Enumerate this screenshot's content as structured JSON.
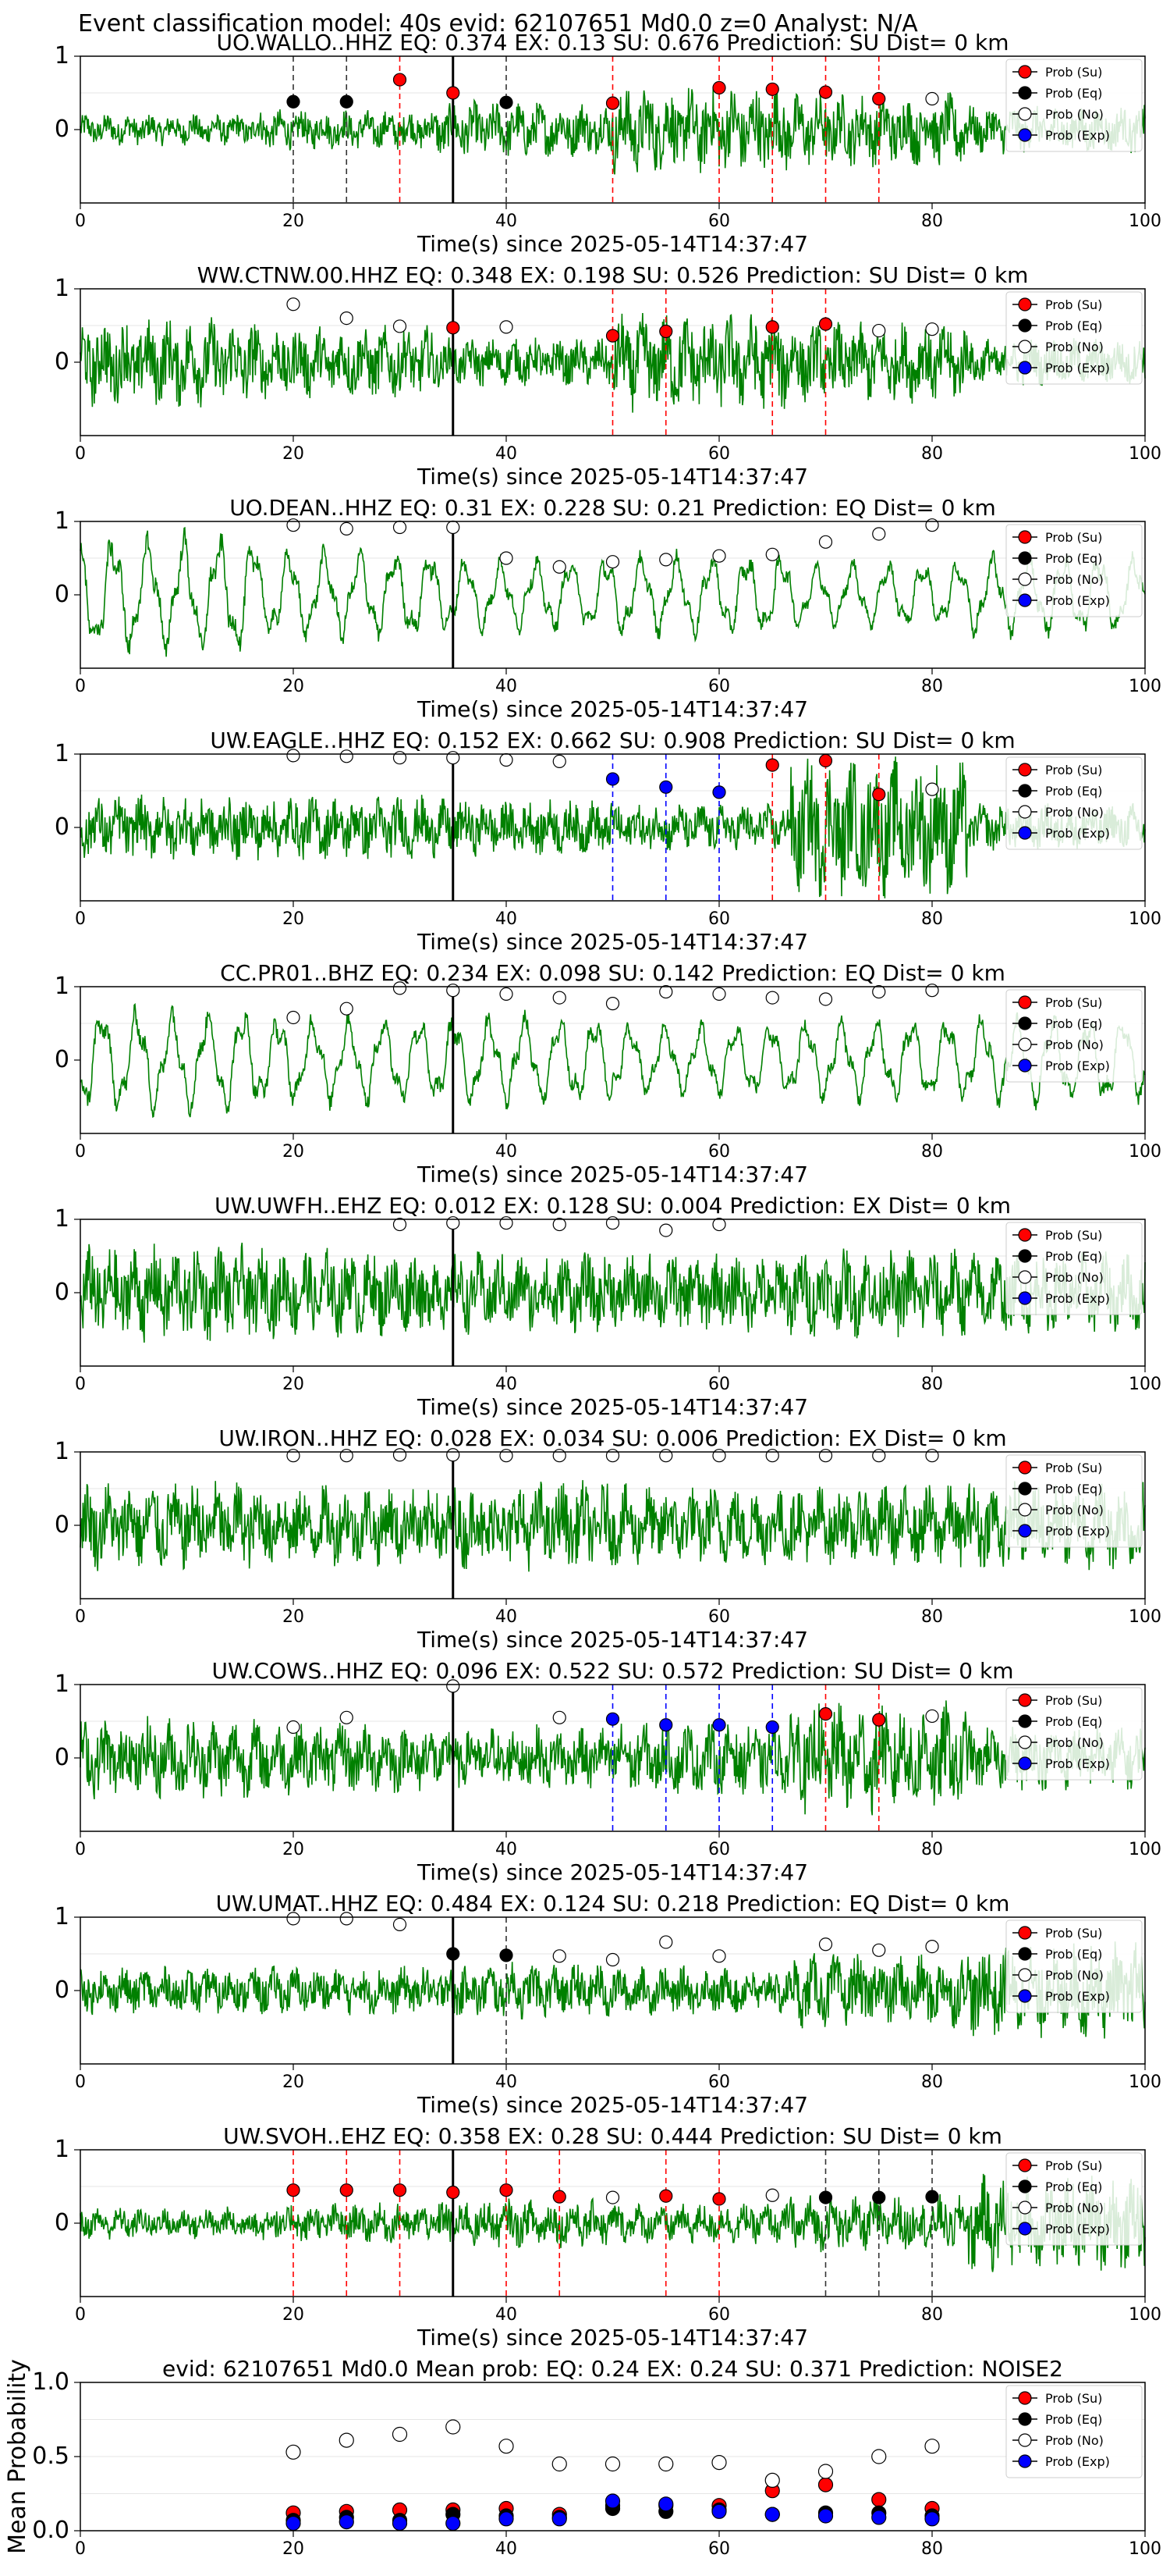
{
  "suptitle": "Event classification model: 40s evid: 62107651 Md0.0 z=0 Analyst: N/A",
  "xlabel": "Time(s) since 2025-05-14T14:37:47",
  "legend": [
    "Prob (Su)",
    "Prob (Eq)",
    "Prob (No)",
    "Prob (Exp)"
  ],
  "colors": {
    "su": "#ff0000",
    "eq": "#000000",
    "no": "#ffffff",
    "exp": "#0000ff",
    "wave": "#008000"
  },
  "chart_data": [
    {
      "type": "line",
      "title": "UO.WALLO..HHZ   EQ: 0.374  EX: 0.13  SU: 0.676   Prediction: SU    Dist= 0 km",
      "xlim": [
        0,
        100
      ],
      "ylim": [
        -1,
        1
      ],
      "xticks": [
        0,
        20,
        40,
        60,
        80,
        100
      ],
      "yticks": [
        0,
        1
      ],
      "style": "noisy",
      "amp": [
        0.2,
        0.25,
        0.35,
        0.55,
        0.45,
        0.3
      ],
      "points": [
        {
          "x": 20,
          "cls": "eq",
          "p": 0.38
        },
        {
          "x": 25,
          "cls": "eq",
          "p": 0.38
        },
        {
          "x": 30,
          "cls": "su",
          "p": 0.68
        },
        {
          "x": 35,
          "cls": "su",
          "p": 0.5
        },
        {
          "x": 40,
          "cls": "eq",
          "p": 0.37
        },
        {
          "x": 50,
          "cls": "su",
          "p": 0.36
        },
        {
          "x": 60,
          "cls": "su",
          "p": 0.57
        },
        {
          "x": 65,
          "cls": "su",
          "p": 0.55
        },
        {
          "x": 70,
          "cls": "su",
          "p": 0.51
        },
        {
          "x": 75,
          "cls": "su",
          "p": 0.42
        },
        {
          "x": 80,
          "cls": "no",
          "p": 0.42
        }
      ],
      "vlines": [
        {
          "x": 20,
          "cls": "eq"
        },
        {
          "x": 25,
          "cls": "eq"
        },
        {
          "x": 30,
          "cls": "su"
        },
        {
          "x": 40,
          "cls": "eq"
        },
        {
          "x": 50,
          "cls": "su"
        },
        {
          "x": 60,
          "cls": "su"
        },
        {
          "x": 65,
          "cls": "su"
        },
        {
          "x": 70,
          "cls": "su"
        },
        {
          "x": 75,
          "cls": "su"
        }
      ]
    },
    {
      "type": "line",
      "title": "WW.CTNW.00.HHZ   EQ: 0.348  EX: 0.198  SU: 0.526   Prediction: SU    Dist= 0 km",
      "xlim": [
        0,
        100
      ],
      "ylim": [
        -1,
        1
      ],
      "xticks": [
        0,
        20,
        40,
        60,
        80,
        100
      ],
      "yticks": [
        0,
        1
      ],
      "style": "noisy",
      "amp": [
        0.55,
        0.45,
        0.3,
        0.6,
        0.5,
        0.3
      ],
      "points": [
        {
          "x": 20,
          "cls": "no",
          "p": 0.79
        },
        {
          "x": 25,
          "cls": "no",
          "p": 0.6
        },
        {
          "x": 30,
          "cls": "no",
          "p": 0.49
        },
        {
          "x": 35,
          "cls": "su",
          "p": 0.47
        },
        {
          "x": 40,
          "cls": "no",
          "p": 0.48
        },
        {
          "x": 50,
          "cls": "su",
          "p": 0.36
        },
        {
          "x": 55,
          "cls": "su",
          "p": 0.42
        },
        {
          "x": 65,
          "cls": "su",
          "p": 0.48
        },
        {
          "x": 70,
          "cls": "su",
          "p": 0.52
        },
        {
          "x": 75,
          "cls": "no",
          "p": 0.43
        },
        {
          "x": 80,
          "cls": "no",
          "p": 0.45
        }
      ],
      "vlines": [
        {
          "x": 50,
          "cls": "su"
        },
        {
          "x": 55,
          "cls": "su"
        },
        {
          "x": 65,
          "cls": "su"
        },
        {
          "x": 70,
          "cls": "su"
        }
      ]
    },
    {
      "type": "line",
      "title": "UO.DEAN..HHZ   EQ: 0.31  EX: 0.228  SU: 0.21   Prediction: EQ    Dist= 0 km",
      "xlim": [
        0,
        100
      ],
      "ylim": [
        -1,
        1
      ],
      "xticks": [
        0,
        20,
        40,
        60,
        80,
        100
      ],
      "yticks": [
        0,
        1
      ],
      "style": "wavy",
      "amp": [
        0.8,
        0.6,
        0.5,
        0.55,
        0.45,
        0.55
      ],
      "points": [
        {
          "x": 20,
          "cls": "no",
          "p": 0.95
        },
        {
          "x": 25,
          "cls": "no",
          "p": 0.9
        },
        {
          "x": 30,
          "cls": "no",
          "p": 0.92
        },
        {
          "x": 35,
          "cls": "no",
          "p": 0.92
        },
        {
          "x": 40,
          "cls": "no",
          "p": 0.5
        },
        {
          "x": 45,
          "cls": "no",
          "p": 0.38
        },
        {
          "x": 50,
          "cls": "no",
          "p": 0.45
        },
        {
          "x": 55,
          "cls": "no",
          "p": 0.48
        },
        {
          "x": 60,
          "cls": "no",
          "p": 0.53
        },
        {
          "x": 65,
          "cls": "no",
          "p": 0.55
        },
        {
          "x": 70,
          "cls": "no",
          "p": 0.72
        },
        {
          "x": 75,
          "cls": "no",
          "p": 0.83
        },
        {
          "x": 80,
          "cls": "no",
          "p": 0.95
        }
      ],
      "vlines": []
    },
    {
      "type": "line",
      "title": "UW.EAGLE..HHZ   EQ: 0.152  EX: 0.662  SU: 0.908   Prediction: SU    Dist= 0 km",
      "xlim": [
        0,
        100
      ],
      "ylim": [
        -1,
        1
      ],
      "xticks": [
        0,
        20,
        40,
        60,
        80,
        100
      ],
      "yticks": [
        0,
        1
      ],
      "style": "noisy",
      "amp": [
        0.4,
        0.4,
        0.35,
        0.3,
        0.85,
        0.3
      ],
      "points": [
        {
          "x": 20,
          "cls": "no",
          "p": 0.98
        },
        {
          "x": 25,
          "cls": "no",
          "p": 0.97
        },
        {
          "x": 30,
          "cls": "no",
          "p": 0.95
        },
        {
          "x": 35,
          "cls": "no",
          "p": 0.95
        },
        {
          "x": 40,
          "cls": "no",
          "p": 0.92
        },
        {
          "x": 45,
          "cls": "no",
          "p": 0.9
        },
        {
          "x": 50,
          "cls": "exp",
          "p": 0.66
        },
        {
          "x": 55,
          "cls": "exp",
          "p": 0.55
        },
        {
          "x": 60,
          "cls": "exp",
          "p": 0.48
        },
        {
          "x": 65,
          "cls": "su",
          "p": 0.85
        },
        {
          "x": 70,
          "cls": "su",
          "p": 0.91
        },
        {
          "x": 75,
          "cls": "su",
          "p": 0.45
        },
        {
          "x": 80,
          "cls": "no",
          "p": 0.52
        }
      ],
      "vlines": [
        {
          "x": 50,
          "cls": "exp"
        },
        {
          "x": 55,
          "cls": "exp"
        },
        {
          "x": 60,
          "cls": "exp"
        },
        {
          "x": 65,
          "cls": "su"
        },
        {
          "x": 70,
          "cls": "su"
        },
        {
          "x": 75,
          "cls": "su"
        }
      ]
    },
    {
      "type": "line",
      "title": "CC.PR01..BHZ   EQ: 0.234  EX: 0.098  SU: 0.142   Prediction: EQ    Dist= 0 km",
      "xlim": [
        0,
        100
      ],
      "ylim": [
        -1,
        1
      ],
      "xticks": [
        0,
        20,
        40,
        60,
        80,
        100
      ],
      "yticks": [
        0,
        1
      ],
      "style": "wavy",
      "amp": [
        0.7,
        0.6,
        0.6,
        0.5,
        0.55,
        0.6
      ],
      "points": [
        {
          "x": 20,
          "cls": "no",
          "p": 0.58
        },
        {
          "x": 25,
          "cls": "no",
          "p": 0.7
        },
        {
          "x": 30,
          "cls": "no",
          "p": 0.98
        },
        {
          "x": 35,
          "cls": "no",
          "p": 0.95
        },
        {
          "x": 40,
          "cls": "no",
          "p": 0.9
        },
        {
          "x": 45,
          "cls": "no",
          "p": 0.85
        },
        {
          "x": 50,
          "cls": "no",
          "p": 0.77
        },
        {
          "x": 55,
          "cls": "no",
          "p": 0.93
        },
        {
          "x": 60,
          "cls": "no",
          "p": 0.9
        },
        {
          "x": 65,
          "cls": "no",
          "p": 0.85
        },
        {
          "x": 70,
          "cls": "no",
          "p": 0.83
        },
        {
          "x": 75,
          "cls": "no",
          "p": 0.93
        },
        {
          "x": 80,
          "cls": "no",
          "p": 0.95
        }
      ],
      "vlines": []
    },
    {
      "type": "line",
      "title": "UW.UWFH..EHZ   EQ: 0.012  EX: 0.128  SU: 0.004   Prediction: EX    Dist= 0 km",
      "xlim": [
        0,
        100
      ],
      "ylim": [
        -1,
        1
      ],
      "xticks": [
        0,
        20,
        40,
        60,
        80,
        100
      ],
      "yticks": [
        0,
        1
      ],
      "style": "noisy",
      "amp": [
        0.6,
        0.55,
        0.5,
        0.5,
        0.55,
        0.5
      ],
      "points": [
        {
          "x": 30,
          "cls": "no",
          "p": 0.93
        },
        {
          "x": 35,
          "cls": "no",
          "p": 0.95
        },
        {
          "x": 40,
          "cls": "no",
          "p": 0.95
        },
        {
          "x": 45,
          "cls": "no",
          "p": 0.93
        },
        {
          "x": 50,
          "cls": "no",
          "p": 0.95
        },
        {
          "x": 55,
          "cls": "no",
          "p": 0.85
        },
        {
          "x": 60,
          "cls": "no",
          "p": 0.93
        }
      ],
      "vlines": []
    },
    {
      "type": "line",
      "title": "UW.IRON..HHZ   EQ: 0.028  EX: 0.034  SU: 0.006   Prediction: EX    Dist= 0 km",
      "xlim": [
        0,
        100
      ],
      "ylim": [
        -1,
        1
      ],
      "xticks": [
        0,
        20,
        40,
        60,
        80,
        100
      ],
      "yticks": [
        0,
        1
      ],
      "style": "noisy",
      "amp": [
        0.55,
        0.5,
        0.55,
        0.5,
        0.5,
        0.55
      ],
      "points": [
        {
          "x": 20,
          "cls": "no",
          "p": 0.95
        },
        {
          "x": 25,
          "cls": "no",
          "p": 0.95
        },
        {
          "x": 30,
          "cls": "no",
          "p": 0.96
        },
        {
          "x": 35,
          "cls": "no",
          "p": 0.96
        },
        {
          "x": 40,
          "cls": "no",
          "p": 0.95
        },
        {
          "x": 45,
          "cls": "no",
          "p": 0.95
        },
        {
          "x": 50,
          "cls": "no",
          "p": 0.95
        },
        {
          "x": 55,
          "cls": "no",
          "p": 0.95
        },
        {
          "x": 60,
          "cls": "no",
          "p": 0.95
        },
        {
          "x": 65,
          "cls": "no",
          "p": 0.95
        },
        {
          "x": 70,
          "cls": "no",
          "p": 0.95
        },
        {
          "x": 75,
          "cls": "no",
          "p": 0.95
        },
        {
          "x": 80,
          "cls": "no",
          "p": 0.95
        }
      ],
      "vlines": []
    },
    {
      "type": "line",
      "title": "UW.COWS..HHZ   EQ: 0.096  EX: 0.522  SU: 0.572   Prediction: SU    Dist= 0 km",
      "xlim": [
        0,
        100
      ],
      "ylim": [
        -1,
        1
      ],
      "xticks": [
        0,
        20,
        40,
        60,
        80,
        100
      ],
      "yticks": [
        0,
        1
      ],
      "style": "noisy",
      "amp": [
        0.5,
        0.45,
        0.4,
        0.45,
        0.7,
        0.4
      ],
      "points": [
        {
          "x": 20,
          "cls": "no",
          "p": 0.42
        },
        {
          "x": 25,
          "cls": "no",
          "p": 0.55
        },
        {
          "x": 35,
          "cls": "no",
          "p": 0.98
        },
        {
          "x": 45,
          "cls": "no",
          "p": 0.55
        },
        {
          "x": 50,
          "cls": "exp",
          "p": 0.53
        },
        {
          "x": 55,
          "cls": "exp",
          "p": 0.45
        },
        {
          "x": 60,
          "cls": "exp",
          "p": 0.45
        },
        {
          "x": 65,
          "cls": "exp",
          "p": 0.42
        },
        {
          "x": 70,
          "cls": "su",
          "p": 0.6
        },
        {
          "x": 75,
          "cls": "su",
          "p": 0.52
        },
        {
          "x": 80,
          "cls": "no",
          "p": 0.57
        }
      ],
      "vlines": [
        {
          "x": 50,
          "cls": "exp"
        },
        {
          "x": 55,
          "cls": "exp"
        },
        {
          "x": 60,
          "cls": "exp"
        },
        {
          "x": 65,
          "cls": "exp"
        },
        {
          "x": 70,
          "cls": "su"
        },
        {
          "x": 75,
          "cls": "su"
        }
      ]
    },
    {
      "type": "line",
      "title": "UW.UMAT..HHZ   EQ: 0.484  EX: 0.124  SU: 0.218   Prediction: EQ    Dist= 0 km",
      "xlim": [
        0,
        100
      ],
      "ylim": [
        -1,
        1
      ],
      "xticks": [
        0,
        20,
        40,
        60,
        80,
        100
      ],
      "yticks": [
        0,
        1
      ],
      "style": "noisy",
      "amp": [
        0.3,
        0.3,
        0.35,
        0.3,
        0.45,
        0.6
      ],
      "points": [
        {
          "x": 20,
          "cls": "no",
          "p": 0.98
        },
        {
          "x": 25,
          "cls": "no",
          "p": 0.98
        },
        {
          "x": 30,
          "cls": "no",
          "p": 0.9
        },
        {
          "x": 35,
          "cls": "eq",
          "p": 0.5
        },
        {
          "x": 40,
          "cls": "eq",
          "p": 0.48
        },
        {
          "x": 45,
          "cls": "no",
          "p": 0.47
        },
        {
          "x": 50,
          "cls": "no",
          "p": 0.42
        },
        {
          "x": 55,
          "cls": "no",
          "p": 0.66
        },
        {
          "x": 60,
          "cls": "no",
          "p": 0.47
        },
        {
          "x": 70,
          "cls": "no",
          "p": 0.63
        },
        {
          "x": 75,
          "cls": "no",
          "p": 0.55
        },
        {
          "x": 80,
          "cls": "no",
          "p": 0.6
        }
      ],
      "vlines": [
        {
          "x": 40,
          "cls": "eq"
        }
      ]
    },
    {
      "type": "line",
      "title": "UW.SVOH..EHZ   EQ: 0.358  EX: 0.28  SU: 0.444   Prediction: SU    Dist= 0 km",
      "xlim": [
        0,
        100
      ],
      "ylim": [
        -1,
        1
      ],
      "xticks": [
        0,
        20,
        40,
        60,
        80,
        100
      ],
      "yticks": [
        0,
        1
      ],
      "style": "noisy",
      "amp": [
        0.2,
        0.25,
        0.3,
        0.25,
        0.35,
        0.6
      ],
      "points": [
        {
          "x": 20,
          "cls": "su",
          "p": 0.45
        },
        {
          "x": 25,
          "cls": "su",
          "p": 0.45
        },
        {
          "x": 30,
          "cls": "su",
          "p": 0.45
        },
        {
          "x": 35,
          "cls": "su",
          "p": 0.42
        },
        {
          "x": 40,
          "cls": "su",
          "p": 0.45
        },
        {
          "x": 45,
          "cls": "su",
          "p": 0.36
        },
        {
          "x": 50,
          "cls": "no",
          "p": 0.35
        },
        {
          "x": 55,
          "cls": "su",
          "p": 0.37
        },
        {
          "x": 60,
          "cls": "su",
          "p": 0.33
        },
        {
          "x": 65,
          "cls": "no",
          "p": 0.38
        },
        {
          "x": 70,
          "cls": "eq",
          "p": 0.35
        },
        {
          "x": 75,
          "cls": "eq",
          "p": 0.35
        },
        {
          "x": 80,
          "cls": "eq",
          "p": 0.36
        }
      ],
      "vlines": [
        {
          "x": 20,
          "cls": "su"
        },
        {
          "x": 25,
          "cls": "su"
        },
        {
          "x": 30,
          "cls": "su"
        },
        {
          "x": 40,
          "cls": "su"
        },
        {
          "x": 45,
          "cls": "su"
        },
        {
          "x": 55,
          "cls": "su"
        },
        {
          "x": 60,
          "cls": "su"
        },
        {
          "x": 70,
          "cls": "eq"
        },
        {
          "x": 75,
          "cls": "eq"
        },
        {
          "x": 80,
          "cls": "eq"
        }
      ]
    },
    {
      "type": "scatter",
      "title": "evid: 62107651  Md0.0   Mean prob:   EQ: 0.24  EX: 0.24  SU: 0.371   Prediction: NOISE2",
      "ylabel": "Mean Probability",
      "xlim": [
        0,
        100
      ],
      "ylim": [
        0,
        1
      ],
      "xticks": [
        0,
        20,
        40,
        60,
        80,
        100
      ],
      "yticks": [
        0.0,
        0.5,
        1.0
      ],
      "x": [
        20,
        25,
        30,
        35,
        40,
        45,
        50,
        55,
        60,
        65,
        70,
        75,
        80
      ],
      "series": [
        {
          "name": "Prob (Su)",
          "cls": "su",
          "values": [
            0.12,
            0.13,
            0.14,
            0.14,
            0.15,
            0.11,
            0.17,
            0.17,
            0.17,
            0.27,
            0.31,
            0.21,
            0.15
          ]
        },
        {
          "name": "Prob (Eq)",
          "cls": "eq",
          "values": [
            0.07,
            0.09,
            0.07,
            0.11,
            0.1,
            0.09,
            0.15,
            0.13,
            0.14,
            0.11,
            0.12,
            0.12,
            0.1
          ]
        },
        {
          "name": "Prob (No)",
          "cls": "no",
          "values": [
            0.53,
            0.61,
            0.65,
            0.7,
            0.57,
            0.45,
            0.45,
            0.45,
            0.46,
            0.34,
            0.4,
            0.5,
            0.57
          ]
        },
        {
          "name": "Prob (Exp)",
          "cls": "exp",
          "values": [
            0.05,
            0.06,
            0.05,
            0.05,
            0.08,
            0.08,
            0.2,
            0.18,
            0.13,
            0.11,
            0.1,
            0.09,
            0.08
          ]
        }
      ]
    }
  ]
}
